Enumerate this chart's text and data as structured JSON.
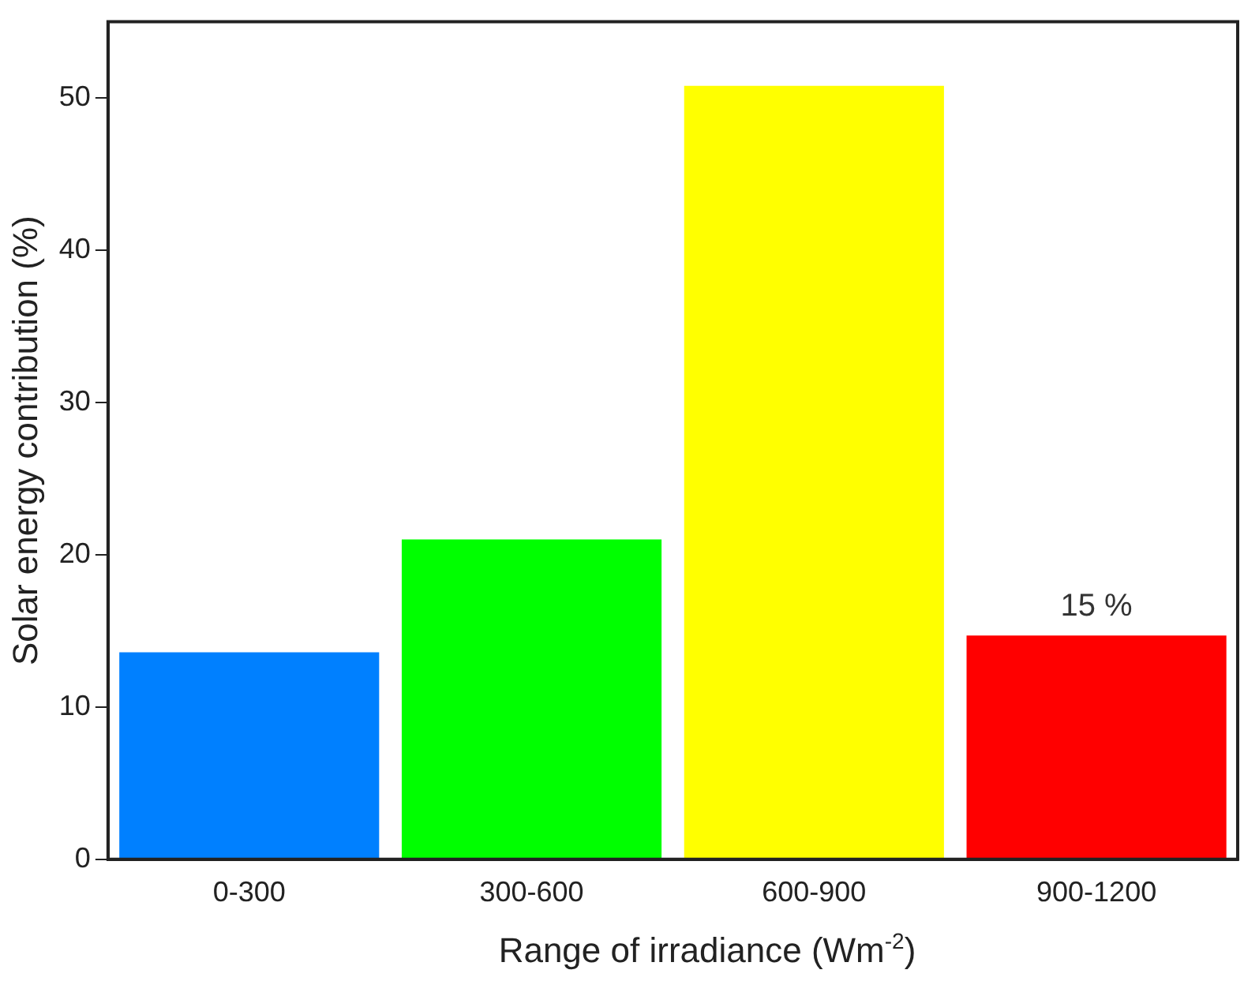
{
  "chart_data": {
    "type": "bar",
    "xlabel": "Range of irradiance (Wm$^{-2}$)",
    "ylabel": "Solar energy contribution (%)",
    "categories": [
      "0-300",
      "300-600",
      "600-900",
      "900-1200"
    ],
    "values": [
      13.6,
      21.0,
      50.8,
      14.7
    ],
    "colors": [
      "#0080ff",
      "#00ff00",
      "#ffff00",
      "#ff0000"
    ],
    "value_labels": [
      null,
      null,
      null,
      "15 %"
    ],
    "ylim": [
      0,
      55
    ],
    "yticks": [
      0,
      10,
      20,
      30,
      40,
      50
    ],
    "grid": false,
    "legend": false
  }
}
